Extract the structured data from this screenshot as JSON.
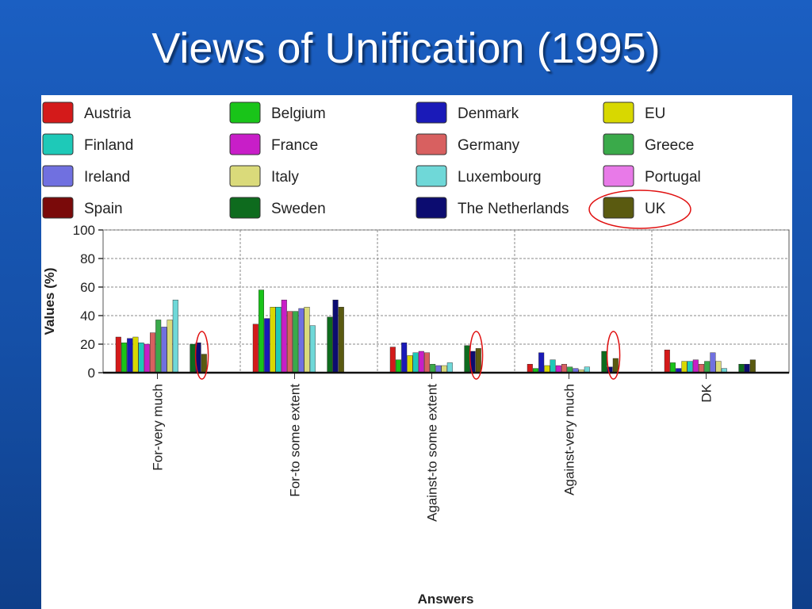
{
  "slide": {
    "title": "Views of Unification (1995)"
  },
  "chart_data": {
    "type": "bar",
    "title": "",
    "xlabel": "Answers",
    "ylabel": "Values (%)",
    "ylim": [
      0,
      100
    ],
    "yticks": [
      0,
      20,
      40,
      60,
      80,
      100
    ],
    "grid": true,
    "legend_position": "top",
    "categories": [
      "For-very much",
      "For-to some extent",
      "Against-to some extent",
      "Against-very much",
      "DK"
    ],
    "series": [
      {
        "name": "Austria",
        "color": "#d41a1a",
        "values": [
          25,
          34,
          18,
          6,
          16
        ]
      },
      {
        "name": "Belgium",
        "color": "#19c419",
        "values": [
          21,
          58,
          9,
          3,
          7
        ]
      },
      {
        "name": "Denmark",
        "color": "#1a1ab8",
        "values": [
          24,
          38,
          21,
          14,
          3
        ]
      },
      {
        "name": "EU",
        "color": "#d8d800",
        "values": [
          25,
          46,
          12,
          5,
          8
        ]
      },
      {
        "name": "Finland",
        "color": "#1ec9b8",
        "values": [
          21,
          46,
          14,
          9,
          8
        ]
      },
      {
        "name": "France",
        "color": "#c81ec8",
        "values": [
          20,
          51,
          15,
          5,
          9
        ]
      },
      {
        "name": "Germany",
        "color": "#d86060",
        "values": [
          28,
          43,
          14,
          6,
          6
        ]
      },
      {
        "name": "Greece",
        "color": "#3aaa4a",
        "values": [
          37,
          43,
          6,
          4,
          8
        ]
      },
      {
        "name": "Ireland",
        "color": "#7070e0",
        "values": [
          32,
          45,
          5,
          3,
          14
        ]
      },
      {
        "name": "Italy",
        "color": "#dada7a",
        "values": [
          37,
          46,
          5,
          2,
          8
        ]
      },
      {
        "name": "Luxembourg",
        "color": "#6fd8d8",
        "values": [
          51,
          33,
          7,
          4,
          3
        ]
      },
      {
        "name": "Portugal",
        "color": "#e87ae8",
        "values": [
          0,
          0,
          0,
          0,
          0
        ]
      },
      {
        "name": "Spain",
        "color": "#7a0a0a",
        "values": [
          0,
          0,
          0,
          0,
          0
        ]
      },
      {
        "name": "Sweden",
        "color": "#0e6b1e",
        "values": [
          20,
          39,
          19,
          15,
          6
        ]
      },
      {
        "name": "The Netherlands",
        "color": "#0c0c70",
        "values": [
          21,
          51,
          15,
          4,
          6
        ]
      },
      {
        "name": "UK",
        "color": "#5a5a10",
        "values": [
          13,
          46,
          17,
          10,
          9
        ]
      }
    ],
    "annotations": [
      "red-circle-uk-legend",
      "red-circle-uk-for-very-much",
      "red-circle-uk-against-to-some-extent",
      "red-circle-uk-against-very-much"
    ]
  }
}
